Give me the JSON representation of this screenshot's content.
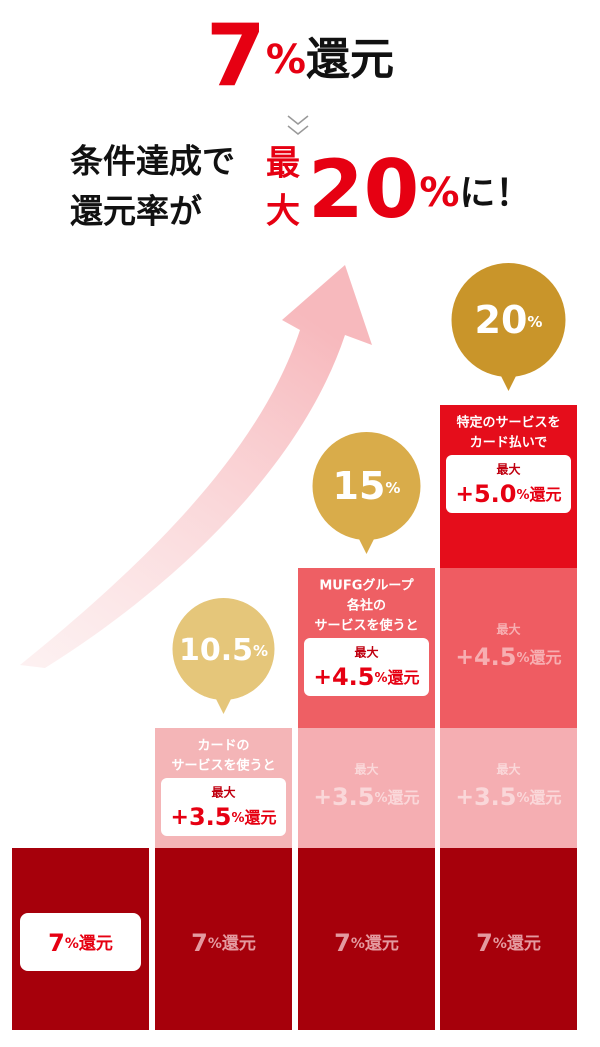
{
  "header": {
    "headline": {
      "number": "7",
      "unit": "%",
      "suffix": "還元"
    },
    "line1": "条件達成で",
    "line2": "還元率が",
    "max_chars": [
      "最",
      "大"
    ],
    "big": {
      "number": "20",
      "unit": "%",
      "suffix": "に！"
    }
  },
  "columns": [
    {
      "base": {
        "number": "7",
        "unit": "%",
        "suffix": "還元"
      },
      "tiers": []
    },
    {
      "bubble": {
        "number": "10.5",
        "unit": "%"
      },
      "base": {
        "number": "7",
        "unit": "%",
        "suffix": "還元"
      },
      "tiers": [
        {
          "caption": [
            "カードの",
            "サービスを使うと"
          ],
          "max": "最大",
          "amount": {
            "sign": "+",
            "number": "3.5",
            "unit": "%",
            "suffix": "還元"
          }
        }
      ]
    },
    {
      "bubble": {
        "number": "15",
        "unit": "%"
      },
      "base": {
        "number": "7",
        "unit": "%",
        "suffix": "還元"
      },
      "tiers": [
        {
          "max": "最大",
          "amount": {
            "sign": "+",
            "number": "3.5",
            "unit": "%",
            "suffix": "還元"
          }
        },
        {
          "caption": [
            "MUFGグループ",
            "各社の",
            "サービスを使うと"
          ],
          "max": "最大",
          "amount": {
            "sign": "+",
            "number": "4.5",
            "unit": "%",
            "suffix": "還元"
          }
        }
      ]
    },
    {
      "bubble": {
        "number": "20",
        "unit": "%"
      },
      "base": {
        "number": "7",
        "unit": "%",
        "suffix": "還元"
      },
      "tiers": [
        {
          "max": "最大",
          "amount": {
            "sign": "+",
            "number": "3.5",
            "unit": "%",
            "suffix": "還元"
          }
        },
        {
          "max": "最大",
          "amount": {
            "sign": "+",
            "number": "4.5",
            "unit": "%",
            "suffix": "還元"
          }
        },
        {
          "caption": [
            "特定のサービスを",
            "カード払いで"
          ],
          "max": "最大",
          "amount": {
            "sign": "+",
            "number": "5.0",
            "unit": "%",
            "suffix": "還元"
          }
        }
      ]
    }
  ]
}
